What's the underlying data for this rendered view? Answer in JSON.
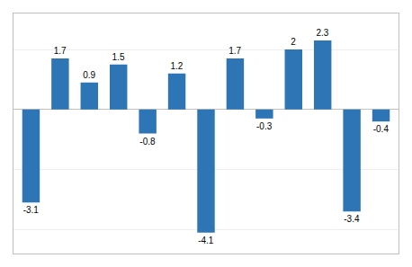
{
  "chart_data": {
    "type": "bar",
    "values": [
      -3.1,
      1.7,
      0.9,
      1.5,
      -0.8,
      1.2,
      -4.1,
      1.7,
      -0.3,
      2.0,
      2.3,
      -3.4,
      -0.4
    ],
    "color": "#2E75B6",
    "ylim": [
      -4.8,
      3.2
    ],
    "yticks": [
      -4,
      -2,
      0,
      2
    ],
    "grid": true,
    "data_labels": true,
    "tick_labels": false
  }
}
